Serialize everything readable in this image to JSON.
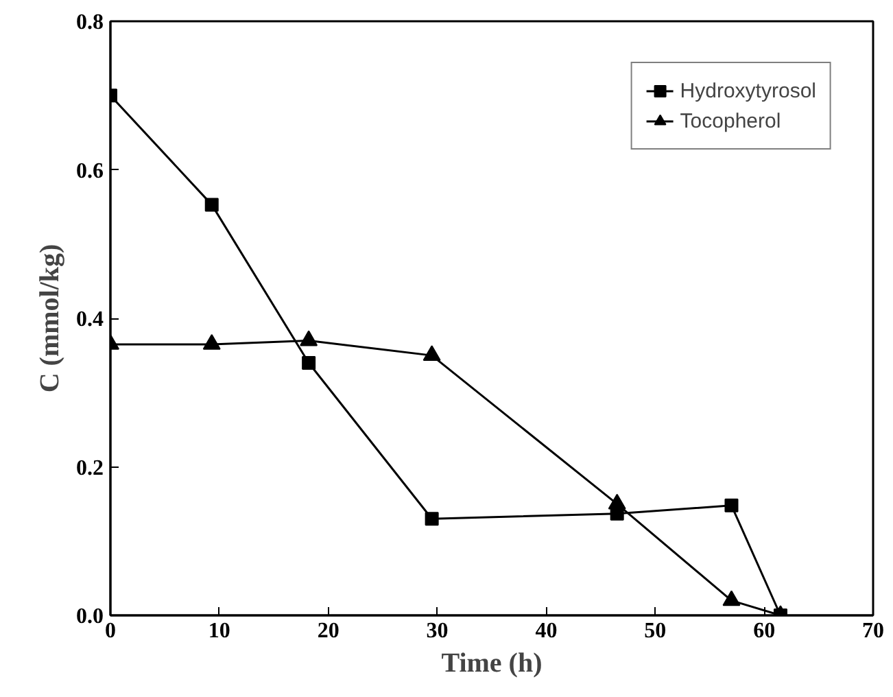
{
  "chart_data": {
    "type": "line",
    "xlabel": "Time (h)",
    "ylabel": "C (mmol/kg)",
    "xlim": [
      0,
      70
    ],
    "xticks": [
      0,
      10,
      20,
      30,
      40,
      50,
      60,
      70
    ],
    "ylim": [
      0,
      0.8
    ],
    "yticks": [
      {
        "value": 0,
        "label": "0.0"
      },
      {
        "value": 0.2,
        "label": "0.2"
      },
      {
        "value": 0.4,
        "label": "0.4"
      },
      {
        "value": 0.6,
        "label": "0.6"
      },
      {
        "value": 0.8,
        "label": "0.8"
      }
    ],
    "series": [
      {
        "name": "Hydroxytyrosol",
        "color": "#000000",
        "marker": "square",
        "x": [
          0,
          9.3,
          18.2,
          29.5,
          46.5,
          57,
          61.5
        ],
        "values": [
          0.7,
          0.553,
          0.34,
          0.13,
          0.137,
          0.148,
          0.0
        ]
      },
      {
        "name": "Tocopherol",
        "color": "#000000",
        "marker": "triangle",
        "x": [
          0,
          9.3,
          18.2,
          29.5,
          46.5,
          57,
          61.5
        ],
        "values": [
          0.365,
          0.365,
          0.37,
          0.35,
          0.15,
          0.02,
          0.0
        ]
      }
    ],
    "legend": "top right",
    "grid": false,
    "line_style": "solid"
  }
}
